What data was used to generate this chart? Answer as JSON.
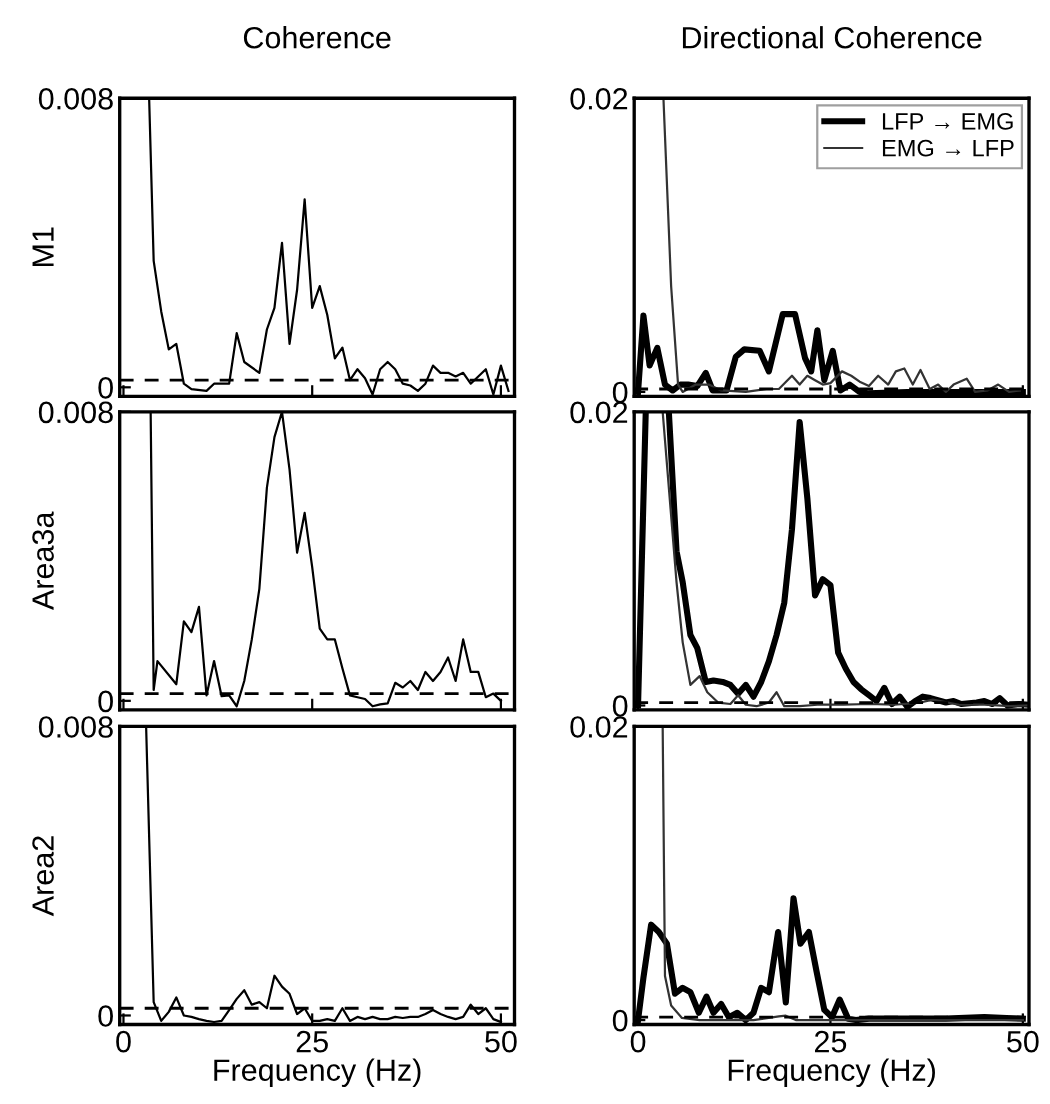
{
  "chart_data": [
    {
      "type": "line",
      "title": "Coherence",
      "ylabel": "M1",
      "xlim": [
        -0.5,
        51.8
      ],
      "ylim": [
        -0.00025,
        0.008
      ],
      "xticks": [
        0,
        25,
        50
      ],
      "yticks": [
        0,
        0.008
      ],
      "tick_labels": "y",
      "line_style": "solid",
      "marker": "none",
      "grid": false,
      "legend": false,
      "ref_lines": [
        {
          "axis": "y",
          "value": 0.0002,
          "line_style": "dashed",
          "color": "#000000"
        }
      ],
      "series": [
        {
          "color": "#000000",
          "x": [
            3.4,
            4,
            5,
            6,
            7,
            8,
            9,
            11,
            12,
            14,
            15,
            16,
            18,
            19,
            20,
            21,
            22,
            23,
            24,
            25,
            26,
            27,
            28,
            29,
            30,
            31,
            32,
            33,
            34,
            35,
            36,
            37,
            38,
            39,
            40,
            41,
            42,
            43,
            44,
            45,
            46,
            47,
            48,
            49,
            50,
            51
          ],
          "values": [
            0.008,
            0.0035,
            0.0021,
            0.00105,
            0.0012,
            0.0001,
            -5e-05,
            -0.0001,
            0.0001,
            0.0001,
            0.0015,
            0.0007,
            0.0004,
            0.0016,
            0.0022,
            0.004,
            0.0012,
            0.0027,
            0.0052,
            0.0022,
            0.0028,
            0.002,
            0.0008,
            0.0011,
            0.0002,
            0.0005,
            0.00025,
            -0.0002,
            0.0005,
            0.0007,
            0.0005,
            0.0001,
            5e-05,
            -0.0001,
            0.0001,
            0.0006,
            0.0004,
            0.0004,
            0.0003,
            0.0004,
            0.0001,
            0.0003,
            0.0005,
            -0.0002,
            0.0006,
            -0.0001
          ]
        }
      ]
    },
    {
      "type": "line",
      "title": "Directional Coherence",
      "xlim": [
        -0.5,
        50.8
      ],
      "ylim": [
        -0.0003,
        0.02
      ],
      "xticks": [
        0,
        25,
        50
      ],
      "yticks": [
        0,
        0.02
      ],
      "tick_labels": "y",
      "line_style": "solid",
      "marker": "none",
      "grid": false,
      "legend": "top right",
      "ref_lines": [
        {
          "axis": "y",
          "value": 0.0002,
          "line_style": "dashed",
          "color": "#000000"
        }
      ],
      "series": [
        {
          "name": "LFP → EMG",
          "color": "#000000",
          "x": [
            0,
            0.7,
            1.5,
            2.5,
            3.5,
            4.5,
            5.5,
            6.5,
            7.7,
            8.8,
            9.7,
            11.5,
            12.7,
            13.8,
            15.8,
            17,
            18.8,
            20.4,
            21.7,
            22.5,
            23.3,
            24.2,
            25.3,
            26.3,
            27.5,
            28.8,
            30,
            35,
            40,
            45,
            50
          ],
          "values": [
            0,
            0.0052,
            0.0018,
            0.003,
            0.0005,
            0.0001,
            0.0005,
            0.0005,
            0.0004,
            0.0013,
            0.0001,
            0.0001,
            0.0024,
            0.0029,
            0.0028,
            0.0014,
            0.0053,
            0.0053,
            0.0023,
            0.0014,
            0.0042,
            0.0008,
            0.0028,
            0.0001,
            0.0005,
            0.0,
            -0.0001,
            0.0,
            0.0,
            0.0,
            0.0
          ]
        },
        {
          "name": "EMG → LFP",
          "color": "#333333",
          "x": [
            3.3,
            4.3,
            5.2,
            5.8,
            7.5,
            9.2,
            10.8,
            14,
            16.7,
            18.3,
            20,
            21,
            22,
            23,
            24,
            25,
            26.5,
            27.7,
            28.8,
            30,
            31.2,
            32.5,
            33.5,
            34.6,
            35.7,
            36.7,
            37.9,
            39,
            40,
            41,
            42.7,
            43.8,
            45.4,
            46.8,
            48.2,
            49.6
          ],
          "values": [
            0.02,
            0.0072,
            0.0005,
            0.0,
            0.0005,
            0.0005,
            0.0001,
            0.0,
            0.0002,
            0.0002,
            0.0011,
            0.0005,
            0.0011,
            0.0008,
            0.0005,
            0.0006,
            0.0014,
            0.0011,
            0.0007,
            0.0004,
            0.0011,
            0.0005,
            0.0014,
            0.0016,
            0.0005,
            0.0015,
            0.0002,
            0.0005,
            0.0,
            0.0005,
            0.0009,
            0.0,
            0.0001,
            0.0005,
            0.0,
            0.0001
          ]
        }
      ]
    },
    {
      "type": "line",
      "ylabel": "Area3a",
      "xlim": [
        -0.5,
        51.8
      ],
      "ylim": [
        -0.00025,
        0.008
      ],
      "xticks": [
        0,
        25,
        50
      ],
      "yticks": [
        0,
        0.008
      ],
      "tick_labels": "y",
      "line_style": "solid",
      "marker": "none",
      "grid": false,
      "legend": false,
      "ref_lines": [
        {
          "axis": "y",
          "value": 0.0002,
          "line_style": "dashed",
          "color": "#000000"
        }
      ],
      "series": [
        {
          "color": "#000000",
          "x": [
            3.6,
            4,
            4.5,
            7,
            8,
            9,
            10,
            11,
            12,
            13,
            14,
            15,
            16,
            17,
            18,
            19,
            20,
            21,
            22,
            23,
            24,
            25,
            26,
            27,
            28,
            29,
            30,
            31,
            32,
            33,
            34,
            35,
            36,
            37,
            38,
            39,
            40,
            41,
            42,
            43,
            44,
            45,
            46,
            47,
            48,
            49,
            50
          ],
          "values": [
            0.008,
            0.0003,
            0.0011,
            0.00046,
            0.0022,
            0.0019,
            0.0026,
            0.00015,
            0.0011,
            0.00013,
            0.00015,
            -0.00015,
            0.00055,
            0.0017,
            0.0031,
            0.0059,
            0.0073,
            0.008,
            0.0064,
            0.0041,
            0.0052,
            0.0037,
            0.002,
            0.0017,
            0.0017,
            0.0009,
            0.00015,
            0.0001,
            5e-05,
            -0.00015,
            -0.0001,
            -7e-05,
            0.0005,
            0.00037,
            0.00055,
            0.0003,
            0.0008,
            0.00055,
            0.0008,
            0.0012,
            0.00055,
            0.0017,
            0.0008,
            0.0008,
            0.0001,
            0.0002,
            0.0
          ]
        }
      ]
    },
    {
      "type": "line",
      "xlim": [
        -0.5,
        50.8
      ],
      "ylim": [
        -0.0003,
        0.02
      ],
      "xticks": [
        0,
        25,
        50
      ],
      "yticks": [
        0,
        0.02
      ],
      "tick_labels": "y",
      "line_style": "solid",
      "marker": "none",
      "grid": false,
      "legend": false,
      "ref_lines": [
        {
          "axis": "y",
          "value": 0.0002,
          "line_style": "dashed",
          "color": "#000000"
        }
      ],
      "series": [
        {
          "color": "#000000",
          "x": [
            0,
            1,
            2.5,
            4,
            5,
            5.8,
            6.8,
            7.7,
            8.8,
            9.8,
            11,
            12,
            13,
            14,
            15,
            16,
            17,
            18,
            19,
            20,
            21,
            22,
            23,
            24,
            25,
            26,
            27,
            28,
            29,
            30,
            31,
            32,
            33,
            34,
            35,
            36,
            37,
            38,
            40,
            41,
            42,
            44,
            45,
            46,
            47,
            48,
            49.5,
            50.8
          ],
          "values": [
            0,
            0.02,
            null,
            0.02,
            0.0105,
            0.0084,
            0.0048,
            0.0039,
            0.0016,
            0.0017,
            0.0016,
            0.0014,
            0.0008,
            0.0014,
            0.0006,
            0.0016,
            0.003,
            0.0048,
            0.007,
            0.012,
            0.0193,
            0.0141,
            0.0075,
            0.0086,
            0.0082,
            0.0036,
            0.0025,
            0.0016,
            0.0011,
            0.0007,
            0.0003,
            0.0012,
            0.0001,
            0.0006,
            -0.0001,
            0.0003,
            0.0006,
            0.0005,
            0.0002,
            0.0003,
            0.0001,
            0.0002,
            0.0003,
            0.0001,
            0.0005,
            0.0,
            0.0001,
            5e-05
          ]
        },
        {
          "color": "#333333",
          "x": [
            3.2,
            5,
            5.8,
            6.8,
            8,
            9,
            10.4,
            12,
            13,
            14,
            15.4,
            17,
            18,
            19,
            21,
            23.3,
            26.7,
            30,
            33.3,
            36.7,
            38.3,
            41.7,
            45,
            48.3,
            50.8
          ],
          "values": [
            0.02,
            0.0084,
            0.0043,
            0.0014,
            0.002,
            0.0009,
            0.0002,
            0.0001,
            0.0007,
            5e-05,
            -5e-05,
            0.0002,
            0.0009,
            -5e-05,
            -5e-05,
            5e-05,
            5e-05,
            0.0001,
            5e-05,
            0.0002,
            0.0004,
            5e-05,
            5e-05,
            -5e-05,
            0.0
          ]
        }
      ]
    },
    {
      "type": "line",
      "ylabel": "Area2",
      "xlabel": "Frequency (Hz)",
      "xlim": [
        -0.5,
        51.8
      ],
      "ylim": [
        -0.00025,
        0.008
      ],
      "xticks": [
        0,
        25,
        50
      ],
      "yticks": [
        0,
        0.008
      ],
      "line_style": "solid",
      "marker": "none",
      "grid": false,
      "legend": false,
      "ref_lines": [
        {
          "axis": "y",
          "value": 0.0002,
          "line_style": "dashed",
          "color": "#000000"
        }
      ],
      "series": [
        {
          "color": "#000000",
          "x": [
            3,
            4,
            5,
            6,
            7,
            8,
            9,
            10,
            11,
            12,
            13,
            14,
            15,
            16,
            17,
            18,
            19,
            20,
            21,
            22,
            23,
            24,
            25,
            26,
            27,
            28,
            29,
            30,
            31,
            32,
            33,
            34,
            35,
            36,
            37,
            38,
            39,
            40,
            41,
            42,
            43,
            44,
            45,
            46,
            47,
            48,
            49,
            50
          ],
          "values": [
            0.008,
            0.00037,
            -0.00015,
            0.0001,
            0.0005,
            0.0,
            -4e-05,
            -0.0001,
            -0.00015,
            -0.00018,
            -0.00015,
            0.00015,
            0.00046,
            0.0007,
            0.0003,
            0.00037,
            0.0002,
            0.0011,
            0.0008,
            0.0006,
            4e-05,
            0.0002,
            -0.00015,
            -0.00015,
            -0.0001,
            -0.00015,
            0.0002,
            -0.00015,
            -4e-05,
            -0.0001,
            -4e-05,
            -0.0001,
            -0.0001,
            -4e-05,
            -7e-05,
            -4e-05,
            -4e-05,
            4e-05,
            0.00015,
            4e-05,
            -4e-05,
            -0.0001,
            -4e-05,
            0.0003,
            4e-05,
            0.0002,
            -0.0001,
            -0.00018
          ]
        }
      ]
    },
    {
      "type": "line",
      "xlabel": "Frequency (Hz)",
      "xlim": [
        -0.5,
        50.8
      ],
      "ylim": [
        -0.0003,
        0.02
      ],
      "xticks": [
        0,
        25,
        50
      ],
      "yticks": [
        0,
        0.02
      ],
      "line_style": "solid",
      "marker": "none",
      "grid": false,
      "legend": false,
      "ref_lines": [
        {
          "axis": "y",
          "value": 0.0002,
          "line_style": "dashed",
          "color": "#000000"
        }
      ],
      "series": [
        {
          "color": "#000000",
          "x": [
            0,
            0.7,
            1.7,
            2.7,
            3.75,
            4.8,
            5.8,
            6.8,
            7.9,
            8.9,
            9.8,
            10.8,
            11.8,
            12.9,
            14,
            15,
            16,
            17,
            18.2,
            19.2,
            20.2,
            21.1,
            22.2,
            23.2,
            24.2,
            25.2,
            26.2,
            27.3,
            28.3,
            30,
            35,
            40,
            45,
            50
          ],
          "values": [
            0,
            0.0029,
            0.0065,
            0.006,
            0.0052,
            0.0018,
            0.0022,
            0.0019,
            0.0005,
            0.0016,
            0.0005,
            0.0011,
            0.0002,
            0.0005,
            0.0,
            0.0005,
            0.0022,
            0.0019,
            0.006,
            0.0012,
            0.0083,
            0.0052,
            0.006,
            0.0033,
            0.0007,
            0.0002,
            0.0014,
            0.0001,
            0.0,
            0.0001,
            0.0001,
            0.0001,
            0.0002,
            0.0001
          ]
        },
        {
          "color": "#333333",
          "x": [
            3.2,
            3.5,
            4.3,
            5.7,
            8,
            15,
            18.3,
            19.2,
            20.5,
            30,
            40,
            50
          ],
          "values": [
            0.02,
            0.003,
            0.001,
            0.00015,
            0,
            0,
            0.00025,
            0.0003,
            0,
            0,
            0,
            0
          ]
        }
      ]
    }
  ]
}
